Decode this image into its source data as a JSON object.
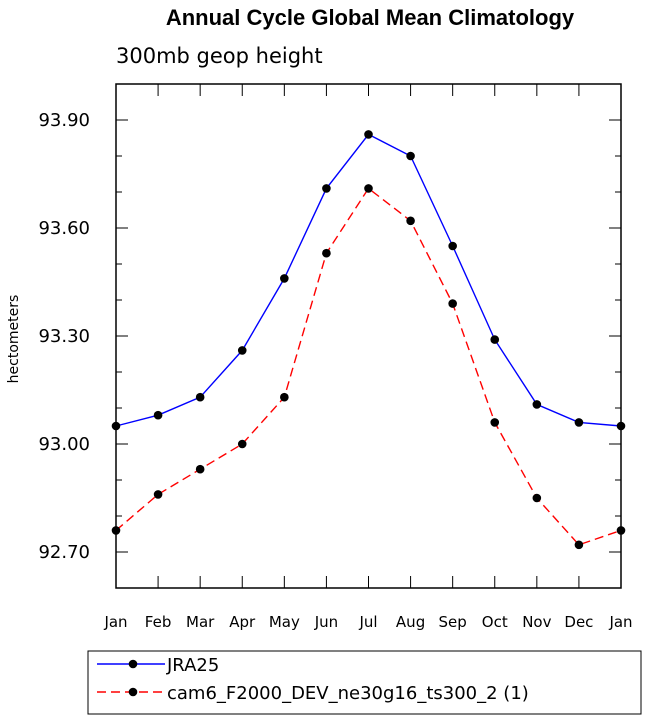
{
  "chart_data": {
    "type": "line",
    "title": "Annual Cycle Global Mean Climatology",
    "subtitle": "300mb geop height",
    "xlabel": "",
    "ylabel": "hectometers",
    "categories": [
      "Jan",
      "Feb",
      "Mar",
      "Apr",
      "May",
      "Jun",
      "Jul",
      "Aug",
      "Sep",
      "Oct",
      "Nov",
      "Dec",
      "Jan"
    ],
    "ylim": [
      92.6,
      94.0
    ],
    "yticks": [
      92.7,
      93.0,
      93.3,
      93.6,
      93.9
    ],
    "ytick_labels": [
      "92.70",
      "93.00",
      "93.30",
      "93.60",
      "93.90"
    ],
    "grid": false,
    "legend_position": "bottom",
    "series": [
      {
        "name": "JRA25",
        "color": "#0000ff",
        "dash": "solid",
        "values": [
          93.05,
          93.08,
          93.13,
          93.26,
          93.46,
          93.71,
          93.86,
          93.8,
          93.55,
          93.29,
          93.11,
          93.06,
          93.05
        ]
      },
      {
        "name": "cam6_F2000_DEV_ne30g16_ts300_2 (1)",
        "color": "#ff0000",
        "dash": "dashed",
        "values": [
          92.76,
          92.86,
          92.93,
          93.0,
          93.13,
          93.53,
          93.71,
          93.62,
          93.39,
          93.06,
          92.85,
          92.72,
          92.76
        ]
      }
    ]
  }
}
